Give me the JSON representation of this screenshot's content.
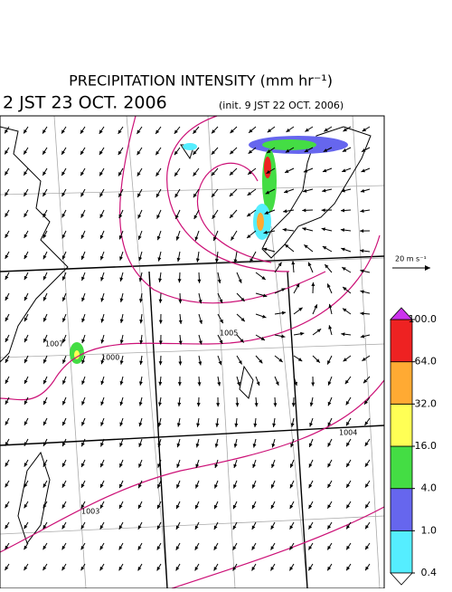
{
  "header": {
    "title": "PRECIPITATION INTENSITY (mm hr⁻¹)",
    "valid_time": "2 JST 23 OCT. 2006",
    "init_time": "(init. 9 JST 22 OCT. 2006)"
  },
  "wind_scale": {
    "label": "20 m s⁻¹"
  },
  "isobar_labels": [
    "1007",
    "1005",
    "1004",
    "1003",
    "1000"
  ],
  "colorbar": {
    "levels": [
      {
        "value": 0.4,
        "label": "0.4"
      },
      {
        "value": 1,
        "label": "1.0"
      },
      {
        "value": 4,
        "label": "4.0"
      },
      {
        "value": 16,
        "label": "16.0"
      },
      {
        "value": 32,
        "label": "32.0"
      },
      {
        "value": 64,
        "label": "64.0"
      },
      {
        "value": 100,
        "label": "100.0"
      }
    ],
    "colors": [
      "#55eeff",
      "#6666ee",
      "#44dd44",
      "#ffff55",
      "#ffaa33",
      "#ee2222"
    ],
    "under_color": "#ffffff",
    "over_color": "#cc33ee"
  }
}
